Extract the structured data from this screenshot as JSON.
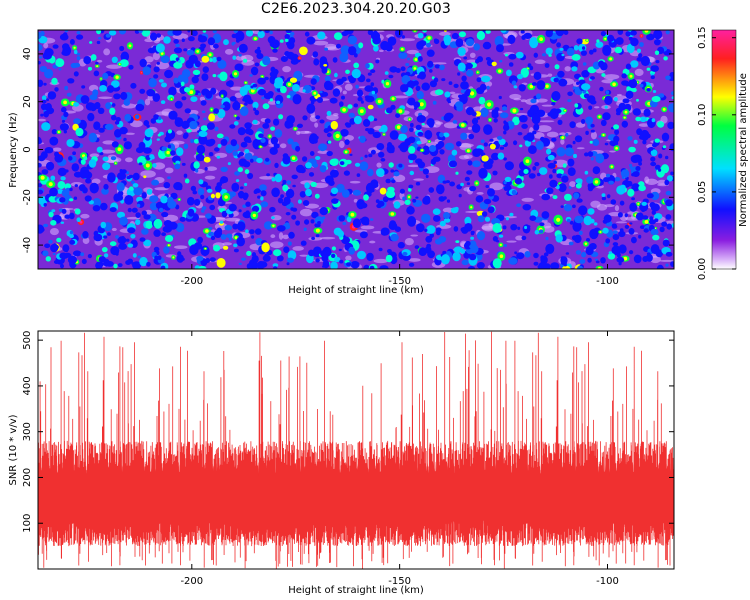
{
  "page": {
    "title": "C2E6.2023.304.20.20.G03"
  },
  "chart_data": [
    {
      "type": "heatmap",
      "title": "C2E6.2023.304.20.20.G03",
      "xlabel": "Height of straight line (km)",
      "ylabel": "Frequency (Hz)",
      "xlim": [
        -237,
        -84
      ],
      "ylim": [
        -50,
        50
      ],
      "xticks": [
        -200,
        -150,
        -100
      ],
      "xtick_labels": [
        "-200",
        "-150",
        "-100"
      ],
      "yticks": [
        40,
        20,
        0,
        -20,
        -40
      ],
      "ytick_labels": [
        "40",
        "20",
        "0",
        "-20",
        "-40"
      ],
      "colorbar": {
        "label": "Normalized spectral amplitude",
        "range": [
          0,
          0.155
        ],
        "ticks": [
          0.0,
          0.05,
          0.1,
          0.15
        ],
        "tick_labels": [
          "0.00",
          "0.05",
          "0.10",
          "0.15"
        ],
        "colors": [
          "#ffffff",
          "#8a1ee0",
          "#1010ff",
          "#00e0ff",
          "#00ff40",
          "#ffff00",
          "#ff2020",
          "#ff20a0"
        ]
      },
      "grid": false
    },
    {
      "type": "line",
      "xlabel": "Height of straight line (km)",
      "ylabel": "SNR (10 * v/v)",
      "xlim": [
        -237,
        -84
      ],
      "ylim": [
        0,
        520
      ],
      "xticks": [
        -200,
        -150,
        -100
      ],
      "xtick_labels": [
        "-200",
        "-150",
        "-100"
      ],
      "yticks": [
        100,
        200,
        300,
        400,
        500
      ],
      "ytick_labels": [
        "100",
        "200",
        "300",
        "400",
        "500"
      ],
      "series_color": "#f03030",
      "band": {
        "typical_low": 70,
        "typical_high": 260,
        "peak_max": 520,
        "floor_min": 0
      },
      "grid": false
    }
  ]
}
